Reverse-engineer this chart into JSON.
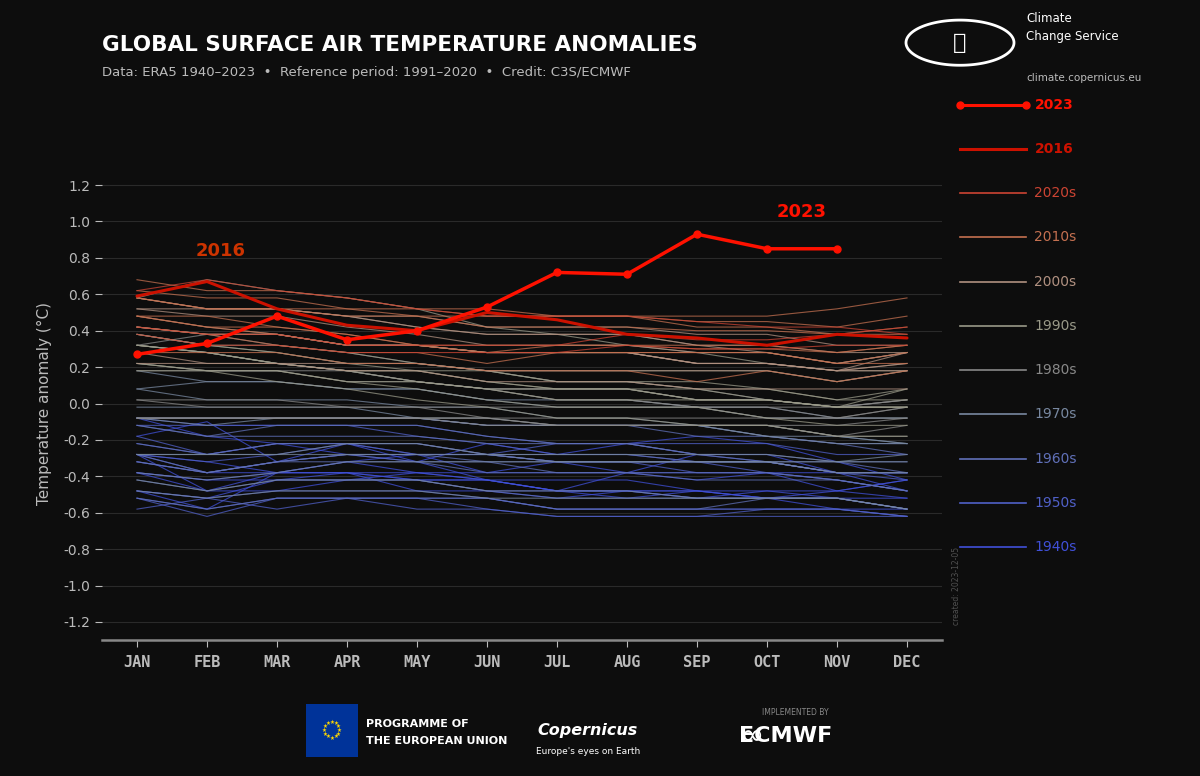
{
  "title": "GLOBAL SURFACE AIR TEMPERATURE ANOMALIES",
  "subtitle": "Data: ERA5 1940–2023  •  Reference period: 1991–2020  •  Credit: C3S/ECMWF",
  "ylabel": "Temperature anomaly (°C)",
  "background_color": "#0d0d0d",
  "text_color": "#bbbbbb",
  "months": [
    "JAN",
    "FEB",
    "MAR",
    "APR",
    "MAY",
    "JUN",
    "JUL",
    "AUG",
    "SEP",
    "OCT",
    "NOV",
    "DEC"
  ],
  "ylim": [
    -1.3,
    1.3
  ],
  "yticks": [
    -1.2,
    -1.0,
    -0.8,
    -0.6,
    -0.4,
    -0.2,
    0.0,
    0.2,
    0.4,
    0.6,
    0.8,
    1.0,
    1.2
  ],
  "data_2023": [
    0.27,
    0.33,
    0.48,
    0.35,
    0.4,
    0.53,
    0.72,
    0.71,
    0.93,
    0.85,
    0.85,
    null
  ],
  "data_2016": [
    0.59,
    0.67,
    0.52,
    0.43,
    0.4,
    0.5,
    0.46,
    0.38,
    0.36,
    0.32,
    0.38,
    0.36
  ],
  "decade_colors": {
    "2020s": "#cc4433",
    "2010s": "#c47050",
    "2000s": "#b09080",
    "1990s": "#999988",
    "1980s": "#888888",
    "1970s": "#7888a0",
    "1960s": "#6070b8",
    "1950s": "#5060c8",
    "1940s": "#4050d8"
  },
  "yearly_data": {
    "1940": [
      -0.18,
      -0.1,
      -0.32,
      -0.22,
      -0.32,
      -0.42,
      -0.48,
      -0.38,
      -0.42,
      -0.38,
      -0.48,
      -0.42
    ],
    "1941": [
      -0.48,
      -0.58,
      -0.38,
      -0.32,
      -0.28,
      -0.38,
      -0.32,
      -0.38,
      -0.28,
      -0.28,
      -0.38,
      -0.48
    ],
    "1942": [
      -0.28,
      -0.48,
      -0.38,
      -0.38,
      -0.48,
      -0.48,
      -0.52,
      -0.48,
      -0.52,
      -0.48,
      -0.52,
      -0.58
    ],
    "1943": [
      -0.38,
      -0.48,
      -0.48,
      -0.42,
      -0.42,
      -0.48,
      -0.48,
      -0.52,
      -0.48,
      -0.48,
      -0.48,
      -0.52
    ],
    "1944": [
      -0.08,
      -0.18,
      -0.22,
      -0.28,
      -0.32,
      -0.22,
      -0.28,
      -0.22,
      -0.18,
      -0.22,
      -0.32,
      -0.42
    ],
    "1945": [
      -0.38,
      -0.42,
      -0.42,
      -0.38,
      -0.38,
      -0.42,
      -0.42,
      -0.42,
      -0.48,
      -0.52,
      -0.58,
      -0.58
    ],
    "1946": [
      -0.48,
      -0.52,
      -0.42,
      -0.42,
      -0.38,
      -0.42,
      -0.48,
      -0.48,
      -0.52,
      -0.52,
      -0.48,
      -0.42
    ],
    "1947": [
      -0.32,
      -0.38,
      -0.38,
      -0.38,
      -0.42,
      -0.42,
      -0.48,
      -0.48,
      -0.48,
      -0.52,
      -0.52,
      -0.52
    ],
    "1948": [
      -0.28,
      -0.32,
      -0.38,
      -0.32,
      -0.38,
      -0.38,
      -0.38,
      -0.38,
      -0.38,
      -0.38,
      -0.38,
      -0.38
    ],
    "1949": [
      -0.38,
      -0.42,
      -0.38,
      -0.38,
      -0.42,
      -0.42,
      -0.48,
      -0.48,
      -0.48,
      -0.52,
      -0.52,
      -0.58
    ],
    "1950": [
      -0.58,
      -0.52,
      -0.58,
      -0.52,
      -0.52,
      -0.52,
      -0.58,
      -0.58,
      -0.58,
      -0.58,
      -0.58,
      -0.62
    ],
    "1951": [
      -0.28,
      -0.38,
      -0.32,
      -0.28,
      -0.28,
      -0.28,
      -0.32,
      -0.32,
      -0.32,
      -0.38,
      -0.42,
      -0.48
    ],
    "1952": [
      -0.18,
      -0.28,
      -0.22,
      -0.22,
      -0.28,
      -0.28,
      -0.32,
      -0.32,
      -0.38,
      -0.38,
      -0.42,
      -0.48
    ],
    "1953": [
      -0.12,
      -0.12,
      -0.12,
      -0.12,
      -0.12,
      -0.18,
      -0.22,
      -0.22,
      -0.28,
      -0.32,
      -0.38,
      -0.42
    ],
    "1954": [
      -0.48,
      -0.52,
      -0.48,
      -0.48,
      -0.48,
      -0.52,
      -0.58,
      -0.58,
      -0.58,
      -0.58,
      -0.58,
      -0.62
    ],
    "1955": [
      -0.52,
      -0.58,
      -0.52,
      -0.52,
      -0.58,
      -0.58,
      -0.62,
      -0.62,
      -0.62,
      -0.58,
      -0.58,
      -0.62
    ],
    "1956": [
      -0.52,
      -0.62,
      -0.52,
      -0.52,
      -0.52,
      -0.58,
      -0.62,
      -0.62,
      -0.62,
      -0.62,
      -0.62,
      -0.62
    ],
    "1957": [
      -0.28,
      -0.32,
      -0.28,
      -0.22,
      -0.22,
      -0.28,
      -0.22,
      -0.22,
      -0.22,
      -0.22,
      -0.28,
      -0.28
    ],
    "1958": [
      -0.08,
      -0.12,
      -0.12,
      -0.12,
      -0.18,
      -0.22,
      -0.28,
      -0.28,
      -0.32,
      -0.32,
      -0.38,
      -0.38
    ],
    "1959": [
      -0.22,
      -0.28,
      -0.22,
      -0.22,
      -0.28,
      -0.28,
      -0.32,
      -0.32,
      -0.32,
      -0.32,
      -0.38,
      -0.38
    ],
    "1960": [
      -0.28,
      -0.38,
      -0.32,
      -0.28,
      -0.28,
      -0.32,
      -0.32,
      -0.32,
      -0.32,
      -0.32,
      -0.38,
      -0.38
    ],
    "1961": [
      -0.08,
      -0.08,
      -0.08,
      -0.08,
      -0.08,
      -0.12,
      -0.12,
      -0.12,
      -0.12,
      -0.18,
      -0.22,
      -0.28
    ],
    "1962": [
      -0.12,
      -0.18,
      -0.12,
      -0.12,
      -0.12,
      -0.18,
      -0.22,
      -0.22,
      -0.28,
      -0.28,
      -0.32,
      -0.38
    ],
    "1963": [
      -0.12,
      -0.18,
      -0.18,
      -0.18,
      -0.18,
      -0.22,
      -0.22,
      -0.22,
      -0.28,
      -0.32,
      -0.32,
      -0.32
    ],
    "1964": [
      -0.52,
      -0.58,
      -0.52,
      -0.52,
      -0.52,
      -0.52,
      -0.58,
      -0.58,
      -0.58,
      -0.52,
      -0.52,
      -0.58
    ],
    "1965": [
      -0.42,
      -0.48,
      -0.42,
      -0.42,
      -0.42,
      -0.48,
      -0.52,
      -0.52,
      -0.52,
      -0.52,
      -0.52,
      -0.58
    ],
    "1966": [
      -0.32,
      -0.38,
      -0.32,
      -0.32,
      -0.32,
      -0.38,
      -0.38,
      -0.38,
      -0.42,
      -0.42,
      -0.42,
      -0.48
    ],
    "1967": [
      -0.22,
      -0.28,
      -0.22,
      -0.22,
      -0.22,
      -0.28,
      -0.28,
      -0.28,
      -0.32,
      -0.32,
      -0.38,
      -0.38
    ],
    "1968": [
      -0.32,
      -0.38,
      -0.32,
      -0.28,
      -0.32,
      -0.32,
      -0.38,
      -0.38,
      -0.38,
      -0.38,
      -0.42,
      -0.48
    ],
    "1969": [
      -0.08,
      -0.08,
      -0.08,
      -0.08,
      -0.08,
      -0.12,
      -0.12,
      -0.12,
      -0.18,
      -0.18,
      -0.22,
      -0.22
    ],
    "1970": [
      -0.08,
      -0.12,
      -0.08,
      -0.08,
      -0.08,
      -0.12,
      -0.12,
      -0.12,
      -0.12,
      -0.18,
      -0.22,
      -0.22
    ],
    "1971": [
      -0.42,
      -0.48,
      -0.42,
      -0.42,
      -0.42,
      -0.48,
      -0.48,
      -0.48,
      -0.52,
      -0.52,
      -0.52,
      -0.58
    ],
    "1972": [
      -0.28,
      -0.28,
      -0.28,
      -0.22,
      -0.22,
      -0.28,
      -0.28,
      -0.28,
      -0.28,
      -0.28,
      -0.32,
      -0.28
    ],
    "1973": [
      0.08,
      0.02,
      0.02,
      0.02,
      -0.02,
      -0.02,
      -0.08,
      -0.08,
      -0.12,
      -0.12,
      -0.18,
      -0.22
    ],
    "1974": [
      -0.48,
      -0.52,
      -0.48,
      -0.48,
      -0.48,
      -0.52,
      -0.52,
      -0.52,
      -0.52,
      -0.52,
      -0.52,
      -0.58
    ],
    "1975": [
      -0.28,
      -0.28,
      -0.28,
      -0.28,
      -0.28,
      -0.28,
      -0.32,
      -0.32,
      -0.32,
      -0.32,
      -0.38,
      -0.38
    ],
    "1976": [
      -0.38,
      -0.42,
      -0.38,
      -0.32,
      -0.32,
      -0.32,
      -0.32,
      -0.32,
      -0.32,
      -0.32,
      -0.32,
      -0.32
    ],
    "1977": [
      0.18,
      0.12,
      0.12,
      0.08,
      0.08,
      0.02,
      0.02,
      0.02,
      -0.02,
      -0.02,
      -0.08,
      -0.08
    ],
    "1978": [
      -0.02,
      -0.02,
      -0.02,
      -0.02,
      -0.08,
      -0.08,
      -0.12,
      -0.12,
      -0.12,
      -0.18,
      -0.18,
      -0.22
    ],
    "1979": [
      0.08,
      0.12,
      0.12,
      0.08,
      0.08,
      0.02,
      -0.02,
      -0.02,
      -0.02,
      -0.08,
      -0.08,
      -0.08
    ],
    "1980": [
      0.18,
      0.18,
      0.18,
      0.18,
      0.12,
      0.08,
      0.02,
      0.02,
      -0.02,
      -0.02,
      -0.08,
      -0.02
    ],
    "1981": [
      0.32,
      0.28,
      0.22,
      0.18,
      0.12,
      0.08,
      0.02,
      0.02,
      -0.02,
      -0.02,
      -0.02,
      0.02
    ],
    "1982": [
      -0.08,
      -0.08,
      -0.08,
      -0.08,
      -0.08,
      -0.12,
      -0.12,
      -0.12,
      -0.12,
      -0.12,
      -0.12,
      -0.08
    ],
    "1983": [
      0.32,
      0.38,
      0.32,
      0.28,
      0.22,
      0.18,
      0.12,
      0.12,
      0.08,
      0.02,
      -0.02,
      0.02
    ],
    "1984": [
      -0.08,
      -0.08,
      -0.08,
      -0.08,
      -0.08,
      -0.08,
      -0.12,
      -0.12,
      -0.12,
      -0.12,
      -0.18,
      -0.12
    ],
    "1985": [
      -0.08,
      -0.08,
      -0.08,
      -0.08,
      -0.08,
      -0.08,
      -0.12,
      -0.12,
      -0.12,
      -0.12,
      -0.18,
      -0.18
    ],
    "1986": [
      0.02,
      0.02,
      0.02,
      -0.02,
      -0.02,
      -0.02,
      -0.02,
      -0.02,
      -0.02,
      -0.08,
      -0.08,
      -0.02
    ],
    "1987": [
      0.22,
      0.18,
      0.18,
      0.12,
      0.12,
      0.08,
      0.08,
      0.08,
      0.02,
      0.02,
      -0.02,
      0.02
    ],
    "1988": [
      0.32,
      0.28,
      0.22,
      0.18,
      0.12,
      0.08,
      0.08,
      0.08,
      0.02,
      0.02,
      -0.02,
      -0.02
    ],
    "1989": [
      0.02,
      -0.02,
      -0.02,
      -0.02,
      -0.02,
      -0.08,
      -0.08,
      -0.08,
      -0.08,
      -0.08,
      -0.08,
      -0.08
    ],
    "1990": [
      0.38,
      0.32,
      0.32,
      0.28,
      0.22,
      0.18,
      0.12,
      0.12,
      0.08,
      0.08,
      0.02,
      0.08
    ],
    "1991": [
      0.38,
      0.32,
      0.28,
      0.22,
      0.18,
      0.12,
      0.08,
      0.08,
      0.02,
      0.02,
      -0.02,
      -0.02
    ],
    "1992": [
      0.22,
      0.18,
      0.12,
      0.08,
      0.02,
      -0.02,
      -0.08,
      -0.08,
      -0.12,
      -0.12,
      -0.18,
      -0.18
    ],
    "1993": [
      0.18,
      0.18,
      0.18,
      0.12,
      0.08,
      0.02,
      -0.02,
      -0.02,
      -0.02,
      -0.08,
      -0.12,
      -0.12
    ],
    "1994": [
      0.22,
      0.18,
      0.18,
      0.12,
      0.12,
      0.08,
      0.08,
      0.08,
      0.02,
      0.02,
      -0.02,
      0.08
    ],
    "1995": [
      0.38,
      0.32,
      0.28,
      0.22,
      0.22,
      0.18,
      0.12,
      0.12,
      0.12,
      0.08,
      0.02,
      0.02
    ],
    "1996": [
      0.32,
      0.28,
      0.22,
      0.18,
      0.18,
      0.12,
      0.08,
      0.08,
      0.08,
      0.02,
      -0.02,
      -0.02
    ],
    "1997": [
      0.32,
      0.28,
      0.22,
      0.18,
      0.18,
      0.18,
      0.18,
      0.18,
      0.18,
      0.18,
      0.12,
      0.18
    ],
    "1998": [
      0.58,
      0.68,
      0.62,
      0.58,
      0.52,
      0.42,
      0.38,
      0.32,
      0.28,
      0.22,
      0.18,
      0.18
    ],
    "1999": [
      0.32,
      0.28,
      0.22,
      0.18,
      0.12,
      0.08,
      0.02,
      0.02,
      0.02,
      0.02,
      -0.02,
      -0.02
    ],
    "2000": [
      0.28,
      0.22,
      0.22,
      0.18,
      0.18,
      0.12,
      0.12,
      0.12,
      0.08,
      0.08,
      0.08,
      0.08
    ],
    "2001": [
      0.42,
      0.38,
      0.38,
      0.32,
      0.32,
      0.28,
      0.28,
      0.28,
      0.22,
      0.22,
      0.18,
      0.22
    ],
    "2002": [
      0.52,
      0.48,
      0.48,
      0.42,
      0.38,
      0.32,
      0.32,
      0.32,
      0.28,
      0.28,
      0.22,
      0.28
    ],
    "2003": [
      0.52,
      0.52,
      0.52,
      0.48,
      0.42,
      0.38,
      0.38,
      0.38,
      0.32,
      0.32,
      0.28,
      0.28
    ],
    "2004": [
      0.42,
      0.38,
      0.38,
      0.32,
      0.32,
      0.28,
      0.28,
      0.28,
      0.22,
      0.22,
      0.18,
      0.18
    ],
    "2005": [
      0.58,
      0.52,
      0.52,
      0.48,
      0.48,
      0.42,
      0.42,
      0.42,
      0.38,
      0.38,
      0.32,
      0.32
    ],
    "2006": [
      0.48,
      0.42,
      0.38,
      0.32,
      0.32,
      0.28,
      0.28,
      0.28,
      0.22,
      0.22,
      0.18,
      0.22
    ],
    "2007": [
      0.58,
      0.52,
      0.52,
      0.48,
      0.42,
      0.38,
      0.38,
      0.38,
      0.32,
      0.28,
      0.22,
      0.28
    ],
    "2008": [
      0.22,
      0.22,
      0.22,
      0.22,
      0.22,
      0.18,
      0.18,
      0.18,
      0.18,
      0.18,
      0.12,
      0.18
    ],
    "2009": [
      0.42,
      0.38,
      0.38,
      0.32,
      0.32,
      0.28,
      0.28,
      0.28,
      0.22,
      0.22,
      0.18,
      0.28
    ],
    "2010": [
      0.68,
      0.62,
      0.62,
      0.58,
      0.52,
      0.52,
      0.48,
      0.48,
      0.42,
      0.42,
      0.38,
      0.38
    ],
    "2011": [
      0.28,
      0.28,
      0.28,
      0.22,
      0.22,
      0.18,
      0.18,
      0.18,
      0.12,
      0.18,
      0.12,
      0.18
    ],
    "2012": [
      0.42,
      0.38,
      0.32,
      0.28,
      0.28,
      0.22,
      0.28,
      0.28,
      0.28,
      0.28,
      0.22,
      0.22
    ],
    "2013": [
      0.48,
      0.42,
      0.38,
      0.32,
      0.32,
      0.28,
      0.28,
      0.28,
      0.28,
      0.28,
      0.22,
      0.28
    ],
    "2014": [
      0.48,
      0.42,
      0.42,
      0.38,
      0.32,
      0.28,
      0.32,
      0.32,
      0.32,
      0.32,
      0.28,
      0.32
    ],
    "2015": [
      0.62,
      0.58,
      0.58,
      0.52,
      0.52,
      0.48,
      0.48,
      0.48,
      0.48,
      0.48,
      0.52,
      0.58
    ],
    "2017": [
      0.58,
      0.52,
      0.52,
      0.48,
      0.48,
      0.42,
      0.42,
      0.42,
      0.4,
      0.4,
      0.38,
      0.42
    ],
    "2018": [
      0.48,
      0.48,
      0.42,
      0.38,
      0.32,
      0.32,
      0.32,
      0.32,
      0.3,
      0.3,
      0.28,
      0.32
    ],
    "2019": [
      0.58,
      0.52,
      0.52,
      0.52,
      0.48,
      0.48,
      0.48,
      0.48,
      0.45,
      0.45,
      0.42,
      0.48
    ],
    "2020": [
      0.62,
      0.68,
      0.62,
      0.58,
      0.52,
      0.48,
      0.48,
      0.48,
      0.45,
      0.42,
      0.42,
      0.38
    ],
    "2021": [
      0.38,
      0.32,
      0.32,
      0.28,
      0.28,
      0.28,
      0.28,
      0.32,
      0.3,
      0.3,
      0.32,
      0.32
    ],
    "2022": [
      0.42,
      0.38,
      0.38,
      0.32,
      0.32,
      0.32,
      0.32,
      0.38,
      0.35,
      0.35,
      0.38,
      0.42
    ]
  }
}
